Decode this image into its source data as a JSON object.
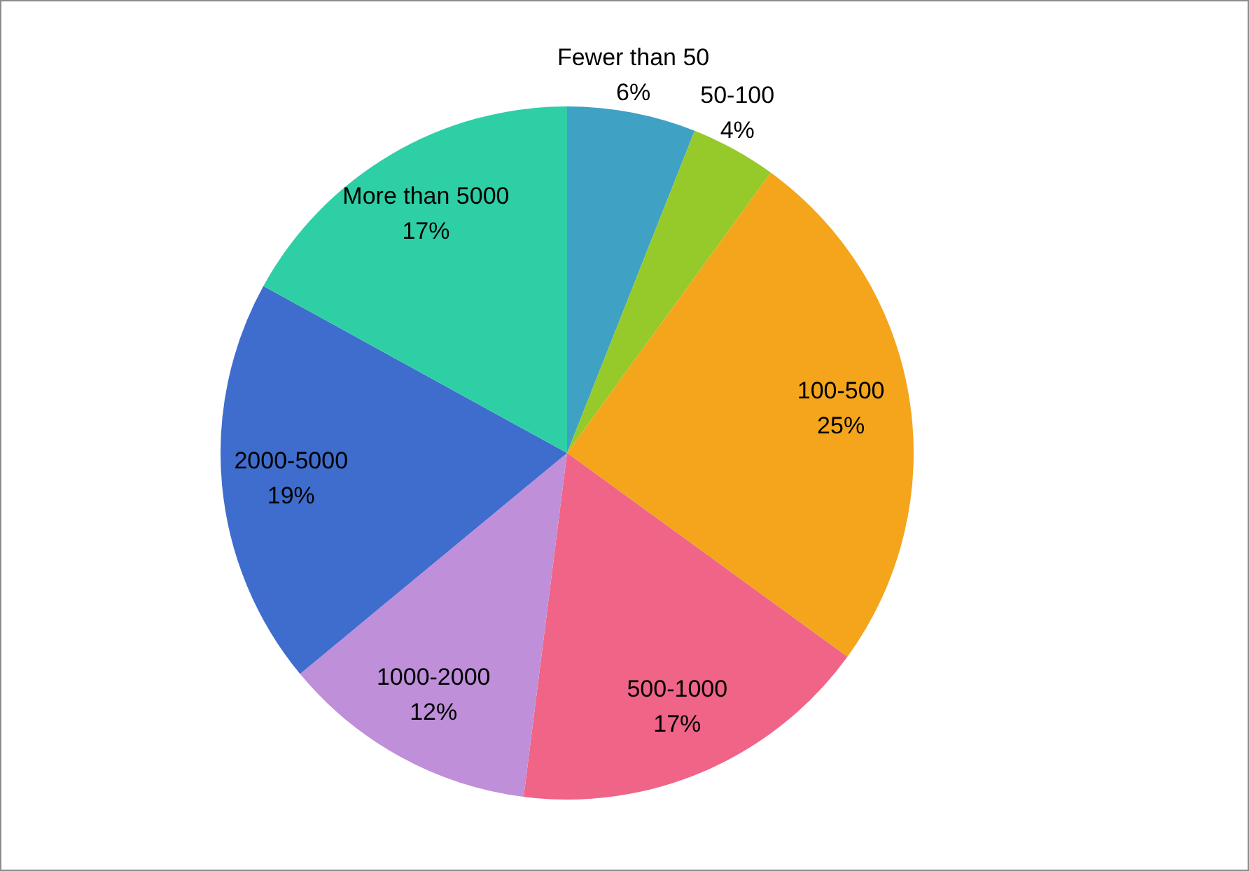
{
  "chart_data": {
    "type": "pie",
    "categories": [
      "Fewer than 50",
      "50-100",
      "100-500",
      "500-1000",
      "1000-2000",
      "2000-5000",
      "More than 5000"
    ],
    "values": [
      6,
      4,
      25,
      17,
      12,
      19,
      17
    ],
    "colors": [
      "#3fa2c4",
      "#96c92a",
      "#f4a51b",
      "#ef6487",
      "#bf8fda",
      "#3f6dcd",
      "#2ecfa5"
    ],
    "value_labels": [
      "6%",
      "4%",
      "25%",
      "17%",
      "12%",
      "19%",
      "17%"
    ],
    "legend": false
  }
}
